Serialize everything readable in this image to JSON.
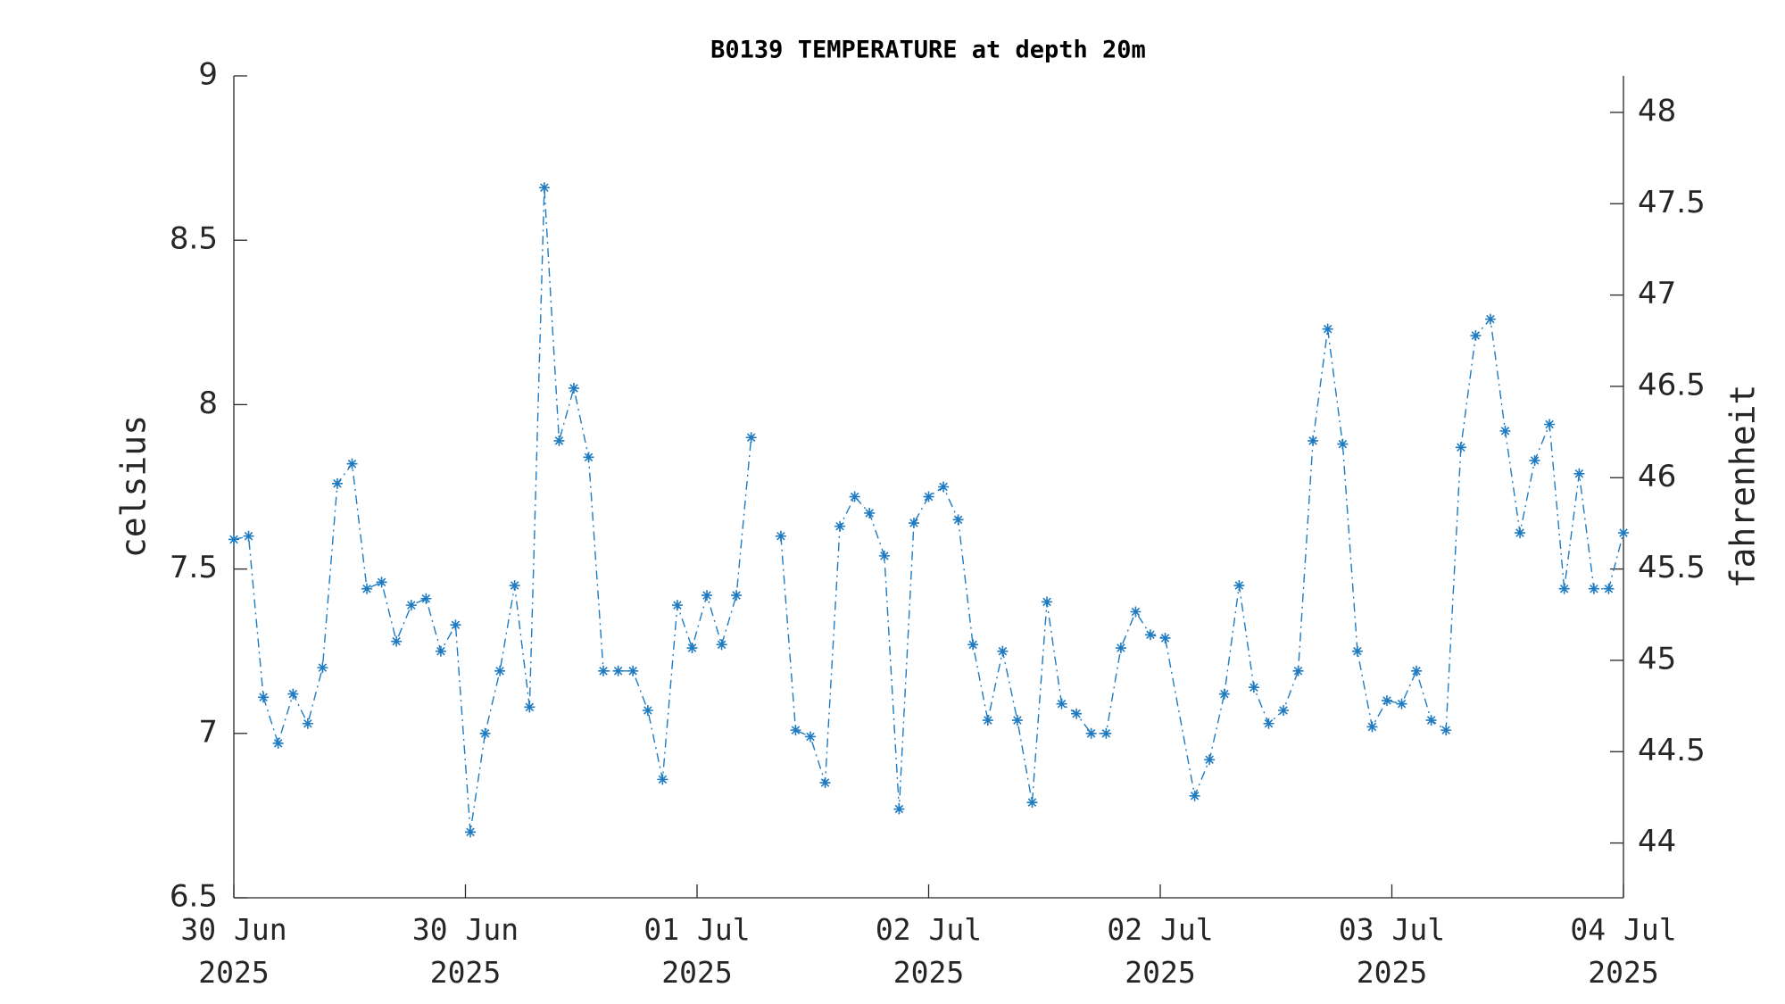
{
  "chart_data": {
    "type": "line",
    "title": "B0139 TEMPERATURE at depth 20m",
    "ylabel": "celsius",
    "y2label": "fahrenheit",
    "xlim": [
      0,
      96
    ],
    "xticks": [
      {
        "value": 0,
        "label": "30 Jun\n2025"
      },
      {
        "value": 16,
        "label": "30 Jun\n2025"
      },
      {
        "value": 32,
        "label": "01 Jul\n2025"
      },
      {
        "value": 48,
        "label": "02 Jul\n2025"
      },
      {
        "value": 64,
        "label": "02 Jul\n2025"
      },
      {
        "value": 80,
        "label": "03 Jul\n2025"
      },
      {
        "value": 96,
        "label": "04 Jul\n2025"
      }
    ],
    "ylim": [
      6.5,
      9
    ],
    "yticks": [
      6.5,
      7,
      7.5,
      8,
      8.5,
      9
    ],
    "y2lim": [
      43.7,
      48.2
    ],
    "y2ticks": [
      44,
      44.5,
      45,
      45.5,
      46,
      46.5,
      47,
      47.5,
      48
    ],
    "x": [
      0,
      1.02,
      2.04,
      3.06,
      4.09,
      5.11,
      6.13,
      7.15,
      8.17,
      9.19,
      10.21,
      11.23,
      12.26,
      13.28,
      14.3,
      15.32,
      16.34,
      17.36,
      18.38,
      19.4,
      20.43,
      21.45,
      22.47,
      23.49,
      24.51,
      25.53,
      26.55,
      27.57,
      28.6,
      29.62,
      30.64,
      31.66,
      32.68,
      33.7,
      34.72,
      35.74,
      36.77,
      37.79,
      38.81,
      39.83,
      40.85,
      41.87,
      42.89,
      43.91,
      44.94,
      45.96,
      46.98,
      48,
      49.02,
      50.04,
      51.06,
      52.09,
      53.11,
      54.13,
      55.15,
      56.17,
      57.19,
      58.21,
      59.23,
      60.26,
      61.28,
      62.3,
      63.32,
      64.34,
      66.38,
      67.4,
      68.43,
      69.45,
      70.47,
      71.49,
      72.51,
      73.53,
      74.55,
      75.57,
      76.6,
      77.62,
      78.64,
      79.66,
      80.68,
      81.7,
      82.72,
      83.74,
      84.77,
      85.79,
      86.81,
      87.83,
      88.85,
      89.87,
      90.89,
      91.91,
      92.94,
      93.96,
      94.98,
      96
    ],
    "series": [
      {
        "color": "#1f7bc1",
        "values": [
          7.59,
          7.6,
          7.11,
          6.97,
          7.12,
          7.03,
          7.2,
          7.76,
          7.82,
          7.44,
          7.46,
          7.28,
          7.39,
          7.41,
          7.25,
          7.33,
          6.7,
          7.0,
          7.19,
          7.45,
          7.08,
          8.66,
          7.89,
          8.05,
          7.84,
          7.19,
          7.19,
          7.19,
          7.07,
          6.86,
          7.39,
          7.26,
          7.42,
          7.27,
          7.42,
          7.9,
          null,
          7.6,
          7.01,
          6.99,
          6.85,
          7.63,
          7.72,
          7.67,
          7.54,
          6.77,
          7.64,
          7.72,
          7.75,
          7.65,
          7.27,
          7.04,
          7.25,
          7.04,
          6.79,
          7.4,
          7.09,
          7.06,
          7.0,
          7.0,
          7.26,
          7.37,
          7.3,
          7.29,
          6.81,
          6.92,
          7.12,
          7.45,
          7.14,
          7.03,
          7.07,
          7.19,
          7.89,
          8.23,
          7.88,
          7.25,
          7.02,
          7.1,
          7.09,
          7.19,
          7.04,
          7.01,
          7.87,
          8.21,
          8.26,
          7.92,
          7.61,
          7.83,
          7.94,
          7.44,
          7.79,
          7.44,
          7.44,
          7.61
        ]
      }
    ]
  }
}
